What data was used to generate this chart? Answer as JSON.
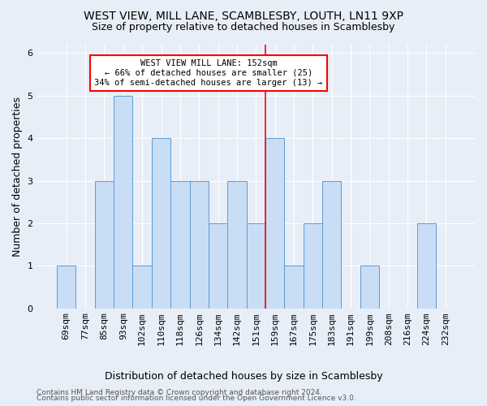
{
  "title1": "WEST VIEW, MILL LANE, SCAMBLESBY, LOUTH, LN11 9XP",
  "title2": "Size of property relative to detached houses in Scamblesby",
  "xlabel": "Distribution of detached houses by size in Scamblesby",
  "ylabel": "Number of detached properties",
  "categories": [
    "69sqm",
    "77sqm",
    "85sqm",
    "93sqm",
    "102sqm",
    "110sqm",
    "118sqm",
    "126sqm",
    "134sqm",
    "142sqm",
    "151sqm",
    "159sqm",
    "167sqm",
    "175sqm",
    "183sqm",
    "191sqm",
    "199sqm",
    "208sqm",
    "216sqm",
    "224sqm",
    "232sqm"
  ],
  "values": [
    1,
    0,
    3,
    5,
    1,
    4,
    3,
    3,
    2,
    3,
    2,
    4,
    1,
    2,
    3,
    0,
    1,
    0,
    0,
    2,
    0
  ],
  "bar_color": "#c9ddf5",
  "bar_edge_color": "#5b9bd5",
  "vline_x": 10.5,
  "annotation_line1": "WEST VIEW MILL LANE: 152sqm",
  "annotation_line2": "← 66% of detached houses are smaller (25)",
  "annotation_line3": "34% of semi-detached houses are larger (13) →",
  "annotation_box_color": "white",
  "annotation_box_edge": "red",
  "vline_color": "red",
  "ylim": [
    0,
    6.2
  ],
  "yticks": [
    0,
    1,
    2,
    3,
    4,
    5,
    6
  ],
  "background_color": "#e8eef8",
  "footer1": "Contains HM Land Registry data © Crown copyright and database right 2024.",
  "footer2": "Contains public sector information licensed under the Open Government Licence v3.0.",
  "title_fontsize": 10,
  "subtitle_fontsize": 9,
  "xlabel_fontsize": 9,
  "ylabel_fontsize": 9,
  "tick_fontsize": 8,
  "footer_fontsize": 6.5
}
